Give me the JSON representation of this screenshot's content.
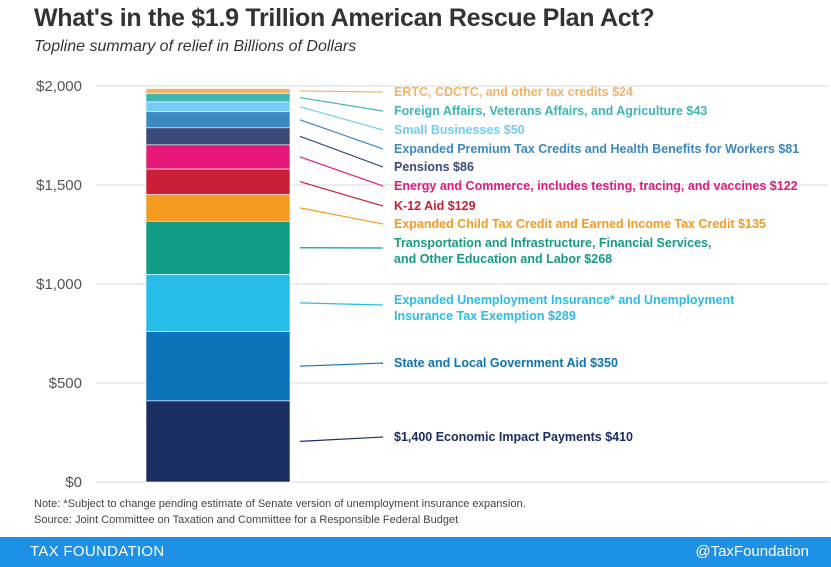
{
  "header": {
    "title": "What's in the $1.9 Trillion American Rescue Plan Act?",
    "subtitle": "Topline summary of relief in Billions of Dollars"
  },
  "chart_data": {
    "type": "bar",
    "stacked": true,
    "ylim": [
      0,
      2000
    ],
    "yticks": [
      "$0",
      "$500",
      "$1,000",
      "$1,500",
      "$2,000"
    ],
    "ytick_values": [
      0,
      500,
      1000,
      1500,
      2000
    ],
    "grid": true,
    "series": [
      {
        "name": "$1,400 Economic Impact Payments $410",
        "value": 410,
        "color": "#1b2e63"
      },
      {
        "name": "State and Local Government Aid $350",
        "value": 350,
        "color": "#0b74b8"
      },
      {
        "name": "Expanded Unemployment Insurance* and Unemployment|Insurance Tax Exemption $289",
        "value": 289,
        "color": "#28bde8"
      },
      {
        "name": "Transportation and Infrastructure, Financial Services,|and Other Education and Labor $268",
        "value": 268,
        "color": "#129c86"
      },
      {
        "name": "Expanded Child Tax Credit and Earned Income Tax Credit $135",
        "value": 135,
        "color": "#f59b1f"
      },
      {
        "name": "K-12 Aid $129",
        "value": 129,
        "color": "#c91f37"
      },
      {
        "name": "Energy and Commerce, includes testing, tracing, and vaccines $122",
        "value": 122,
        "color": "#e6197a"
      },
      {
        "name": "Pensions $86",
        "value": 86,
        "color": "#3a4b7a"
      },
      {
        "name": "Expanded Premium Tax Credits and Health Benefits for Workers $81",
        "value": 81,
        "color": "#3b88c2"
      },
      {
        "name": "Small Businesses $50",
        "value": 50,
        "color": "#72cdf4"
      },
      {
        "name": "Foreign Affairs, Veterans Affairs, and Agriculture $43",
        "value": 43,
        "color": "#3fb6b0"
      },
      {
        "name": "ERTC, CDCTC, and other tax credits $24",
        "value": 24,
        "color": "#f5b266"
      }
    ]
  },
  "notes": {
    "note": "Note: *Subject to change pending estimate of Senate version of unemployment insurance expansion.",
    "source": "Source: Joint Committee on Taxation and Committee for a Responsible Federal Budget"
  },
  "footer": {
    "brand": "TAX FOUNDATION",
    "handle": "@TaxFoundation"
  }
}
